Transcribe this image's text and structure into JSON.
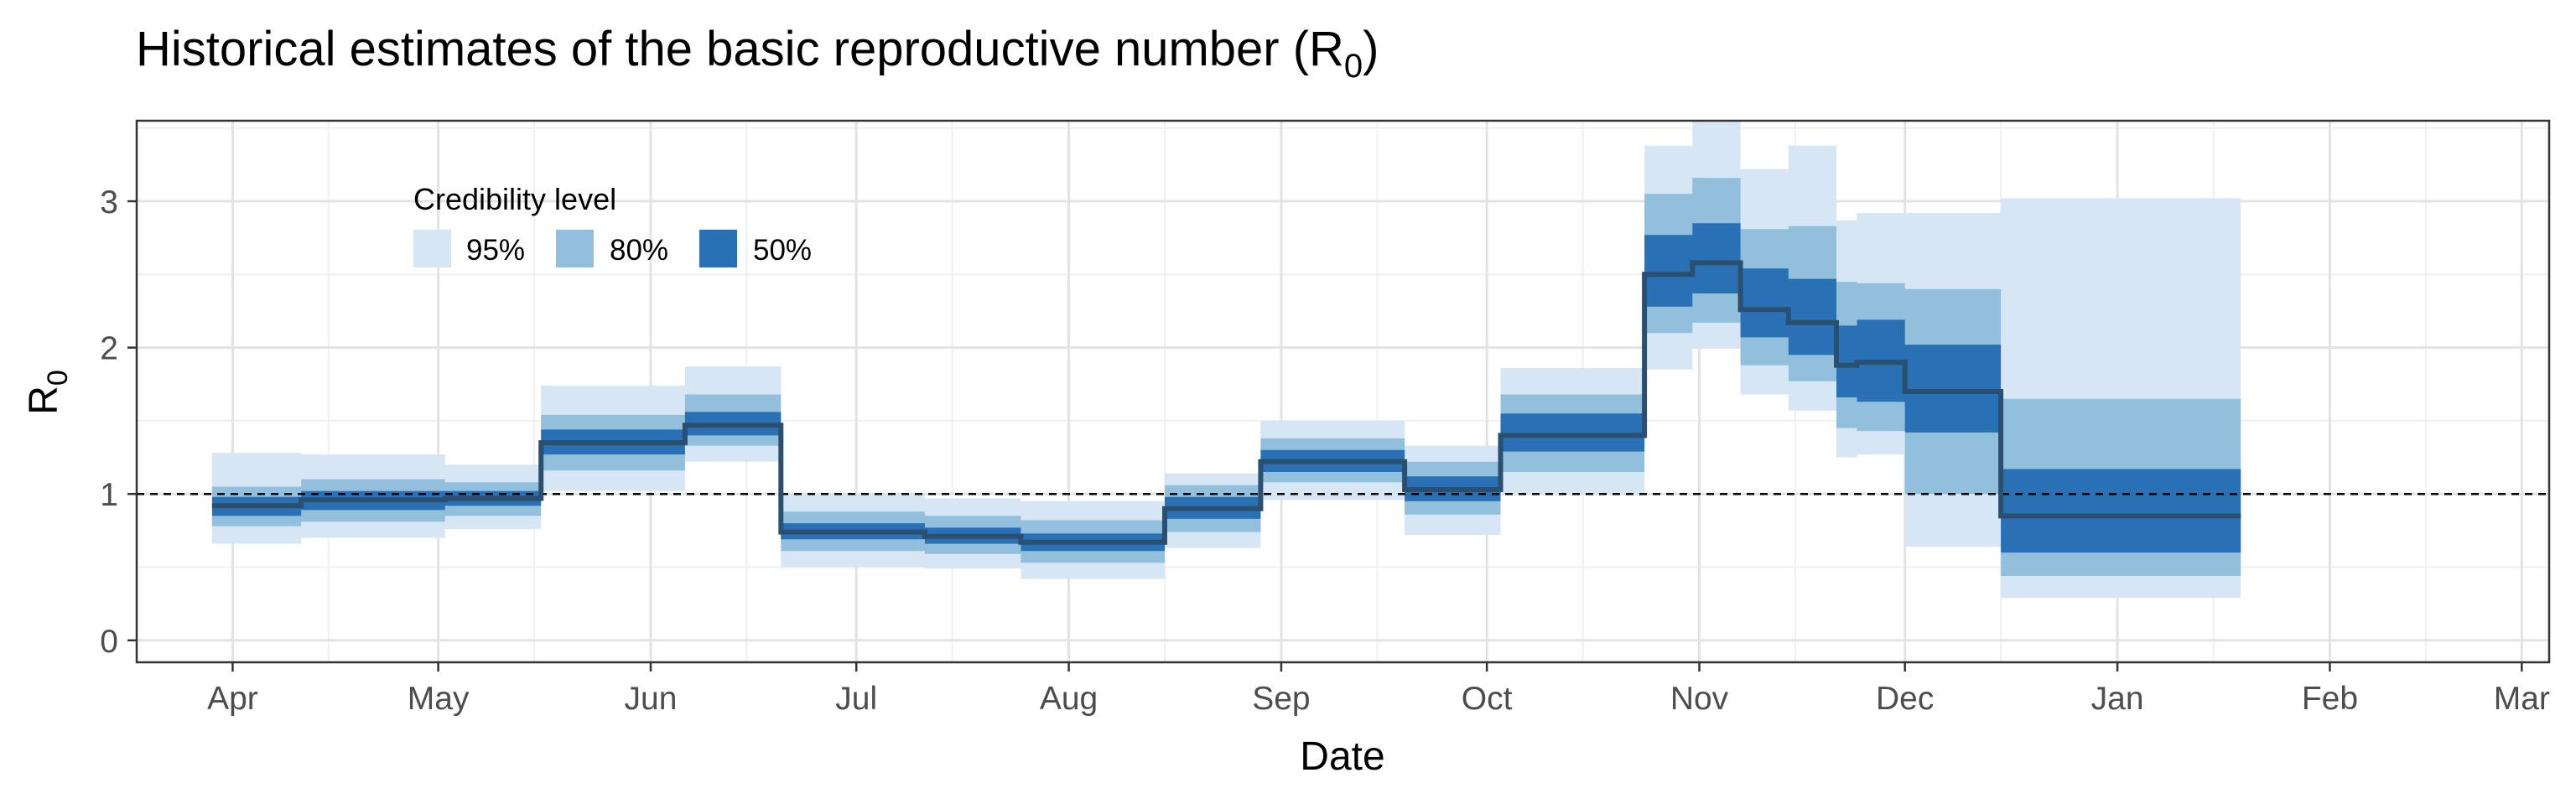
{
  "chart_data": {
    "type": "area",
    "title": "Historical estimates of the basic reproductive number (R",
    "title_subscript": "0",
    "title_suffix": ")",
    "xlabel": "Date",
    "ylabel": "R",
    "ylabel_subscript": "0",
    "ylim": [
      -0.15,
      3.55
    ],
    "xlim": [
      "2020-03-18",
      "2021-03-05"
    ],
    "y_ticks": [
      0,
      1,
      2,
      3
    ],
    "y_minor_ticks": [
      0.5,
      1.5,
      2.5,
      3.5
    ],
    "x_ticks": [
      {
        "date": "2020-04-01",
        "label": "Apr"
      },
      {
        "date": "2020-05-01",
        "label": "May"
      },
      {
        "date": "2020-06-01",
        "label": "Jun"
      },
      {
        "date": "2020-07-01",
        "label": "Jul"
      },
      {
        "date": "2020-08-01",
        "label": "Aug"
      },
      {
        "date": "2020-09-01",
        "label": "Sep"
      },
      {
        "date": "2020-10-01",
        "label": "Oct"
      },
      {
        "date": "2020-11-01",
        "label": "Nov"
      },
      {
        "date": "2020-12-01",
        "label": "Dec"
      },
      {
        "date": "2021-01-01",
        "label": "Jan"
      },
      {
        "date": "2021-02-01",
        "label": "Feb"
      },
      {
        "date": "2021-03-01",
        "label": "Mar"
      }
    ],
    "x_minor_ticks": [
      "2020-04-15",
      "2020-05-15",
      "2020-06-15",
      "2020-07-15",
      "2020-08-15",
      "2020-09-15",
      "2020-10-15",
      "2020-11-15",
      "2020-12-15",
      "2021-01-15",
      "2021-02-15"
    ],
    "reference_line": {
      "y": 1,
      "style": "dashed"
    },
    "grid": true,
    "legend": {
      "title": "Credibility level",
      "position": "top-left",
      "items": [
        {
          "label": "95%",
          "color": "#d7e6f4"
        },
        {
          "label": "80%",
          "color": "#92bfdc"
        },
        {
          "label": "50%",
          "color": "#2a70b4"
        }
      ]
    },
    "colors": {
      "ci95": "#d7e6f4",
      "ci80": "#92bfdc",
      "ci50": "#2a70b4",
      "median": "#2b4f6e"
    },
    "series": [
      {
        "start": "2020-03-29",
        "end": "2020-04-11",
        "median": 0.92,
        "lo50": 0.85,
        "hi50": 0.98,
        "lo80": 0.78,
        "hi80": 1.05,
        "lo95": 0.66,
        "hi95": 1.28
      },
      {
        "start": "2020-04-11",
        "end": "2020-05-02",
        "median": 0.96,
        "lo50": 0.89,
        "hi50": 1.02,
        "lo80": 0.81,
        "hi80": 1.1,
        "lo95": 0.7,
        "hi95": 1.27
      },
      {
        "start": "2020-05-02",
        "end": "2020-05-16",
        "median": 0.97,
        "lo50": 0.92,
        "hi50": 1.02,
        "lo80": 0.85,
        "hi80": 1.08,
        "lo95": 0.76,
        "hi95": 1.2
      },
      {
        "start": "2020-05-16",
        "end": "2020-06-06",
        "median": 1.35,
        "lo50": 1.27,
        "hi50": 1.44,
        "lo80": 1.16,
        "hi80": 1.54,
        "lo95": 1.02,
        "hi95": 1.74
      },
      {
        "start": "2020-06-06",
        "end": "2020-06-20",
        "median": 1.47,
        "lo50": 1.4,
        "hi50": 1.56,
        "lo80": 1.33,
        "hi80": 1.68,
        "lo95": 1.22,
        "hi95": 1.87
      },
      {
        "start": "2020-06-20",
        "end": "2020-07-11",
        "median": 0.74,
        "lo50": 0.69,
        "hi50": 0.8,
        "lo80": 0.61,
        "hi80": 0.88,
        "lo95": 0.5,
        "hi95": 1.0
      },
      {
        "start": "2020-07-11",
        "end": "2020-07-25",
        "median": 0.71,
        "lo50": 0.66,
        "hi50": 0.77,
        "lo80": 0.59,
        "hi80": 0.85,
        "lo95": 0.49,
        "hi95": 0.97
      },
      {
        "start": "2020-07-25",
        "end": "2020-08-15",
        "median": 0.67,
        "lo50": 0.61,
        "hi50": 0.73,
        "lo80": 0.53,
        "hi80": 0.82,
        "lo95": 0.42,
        "hi95": 0.95
      },
      {
        "start": "2020-08-15",
        "end": "2020-08-29",
        "median": 0.9,
        "lo50": 0.83,
        "hi50": 0.98,
        "lo80": 0.74,
        "hi80": 1.06,
        "lo95": 0.63,
        "hi95": 1.14
      },
      {
        "start": "2020-08-29",
        "end": "2020-09-19",
        "median": 1.22,
        "lo50": 1.15,
        "hi50": 1.3,
        "lo80": 1.08,
        "hi80": 1.38,
        "lo95": 0.96,
        "hi95": 1.5
      },
      {
        "start": "2020-09-19",
        "end": "2020-10-03",
        "median": 1.03,
        "lo50": 0.95,
        "hi50": 1.12,
        "lo80": 0.86,
        "hi80": 1.22,
        "lo95": 0.72,
        "hi95": 1.33
      },
      {
        "start": "2020-10-03",
        "end": "2020-10-24",
        "median": 1.4,
        "lo50": 1.29,
        "hi50": 1.55,
        "lo80": 1.15,
        "hi80": 1.68,
        "lo95": 1.0,
        "hi95": 1.86
      },
      {
        "start": "2020-10-24",
        "end": "2020-10-31",
        "median": 2.5,
        "lo50": 2.28,
        "hi50": 2.77,
        "lo80": 2.1,
        "hi80": 3.05,
        "lo95": 1.85,
        "hi95": 3.38
      },
      {
        "start": "2020-10-31",
        "end": "2020-11-07",
        "median": 2.58,
        "lo50": 2.37,
        "hi50": 2.85,
        "lo80": 2.17,
        "hi80": 3.16,
        "lo95": 2.0,
        "hi95": 3.55
      },
      {
        "start": "2020-11-07",
        "end": "2020-11-14",
        "median": 2.26,
        "lo50": 2.07,
        "hi50": 2.54,
        "lo80": 1.88,
        "hi80": 2.81,
        "lo95": 1.68,
        "hi95": 3.22
      },
      {
        "start": "2020-11-14",
        "end": "2020-11-21",
        "median": 2.17,
        "lo50": 1.95,
        "hi50": 2.47,
        "lo80": 1.77,
        "hi80": 2.83,
        "lo95": 1.57,
        "hi95": 3.38
      },
      {
        "start": "2020-11-21",
        "end": "2020-11-24",
        "median": 1.88,
        "lo50": 1.66,
        "hi50": 2.15,
        "lo80": 1.45,
        "hi80": 2.45,
        "lo95": 1.25,
        "hi95": 2.87
      },
      {
        "start": "2020-11-24",
        "end": "2020-12-01",
        "median": 1.9,
        "lo50": 1.63,
        "hi50": 2.19,
        "lo80": 1.43,
        "hi80": 2.44,
        "lo95": 1.27,
        "hi95": 2.92
      },
      {
        "start": "2020-12-01",
        "end": "2020-12-15",
        "median": 1.7,
        "lo50": 1.42,
        "hi50": 2.02,
        "lo80": 1.0,
        "hi80": 2.4,
        "lo95": 0.64,
        "hi95": 2.92
      },
      {
        "start": "2020-12-15",
        "end": "2021-01-19",
        "median": 0.85,
        "lo50": 0.6,
        "hi50": 1.17,
        "lo80": 0.44,
        "hi80": 1.65,
        "lo95": 0.29,
        "hi95": 3.02
      }
    ]
  }
}
